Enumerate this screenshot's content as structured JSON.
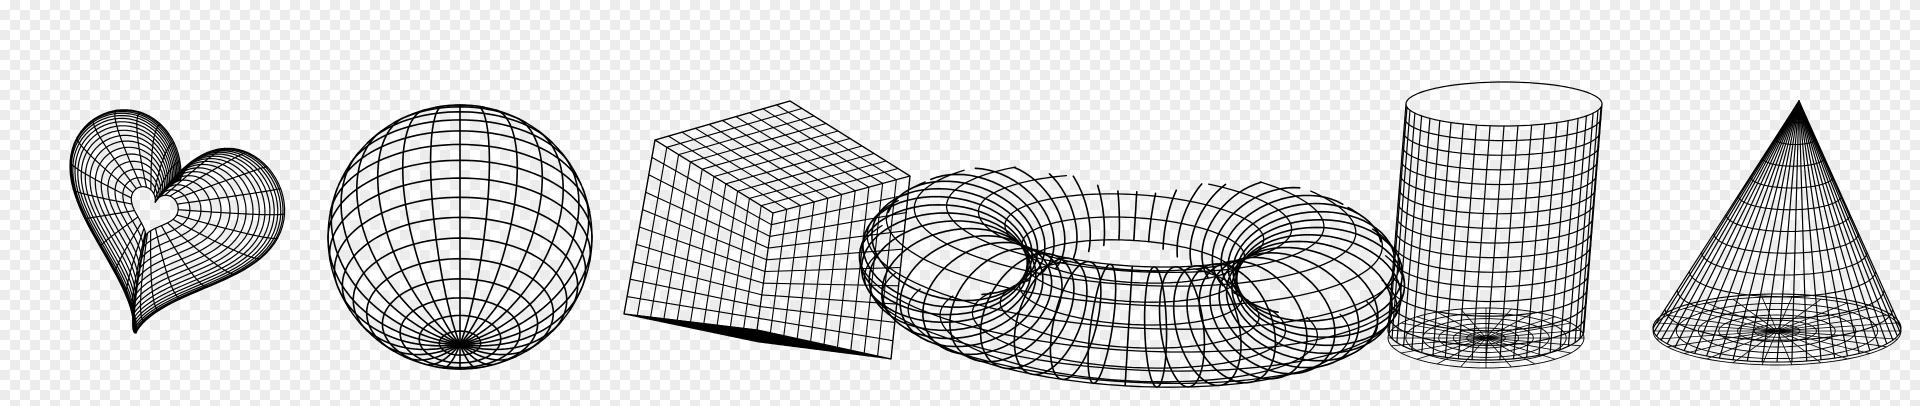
{
  "canvas": {
    "background": "transparency-checkerboard",
    "checker_light": "#ffffff",
    "checker_dark": "#ececec"
  },
  "style": {
    "stroke_color": "#000000"
  },
  "shapes": [
    {
      "name": "wireframe-heart-icon"
    },
    {
      "name": "wireframe-sphere-icon"
    },
    {
      "name": "wireframe-cube-icon"
    },
    {
      "name": "wireframe-torus-icon"
    },
    {
      "name": "wireframe-cylinder-icon"
    },
    {
      "name": "wireframe-cone-icon"
    }
  ]
}
